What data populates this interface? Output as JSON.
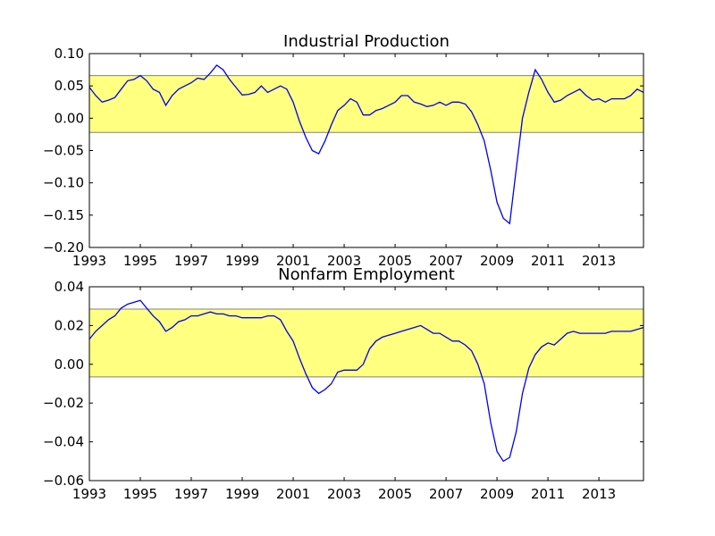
{
  "colors": {
    "line": "#0000ee",
    "band_fill": "#ffff80",
    "band_edge": "#808080"
  },
  "chart_data": [
    {
      "type": "line",
      "title": "Industrial Production",
      "xlabel": "",
      "ylabel": "",
      "xlim": [
        1993.0,
        2014.75
      ],
      "ylim": [
        -0.2,
        0.1
      ],
      "xticks": [
        1993,
        1995,
        1997,
        1999,
        2001,
        2003,
        2005,
        2007,
        2009,
        2011,
        2013
      ],
      "xtick_labels": [
        "1993",
        "1995",
        "1997",
        "1999",
        "2001",
        "2003",
        "2005",
        "2007",
        "2009",
        "2011",
        "2013"
      ],
      "yticks": [
        -0.2,
        -0.15,
        -0.1,
        -0.05,
        0.0,
        0.05,
        0.1
      ],
      "ytick_labels": [
        "−0.20",
        "−0.15",
        "−0.10",
        "−0.05",
        "0.00",
        "0.05",
        "0.10"
      ],
      "band": [
        -0.022,
        0.066
      ],
      "grid": false,
      "series": [
        {
          "x": [
            1993.0,
            1993.25,
            1993.5,
            1993.75,
            1994.0,
            1994.25,
            1994.5,
            1994.75,
            1995.0,
            1995.25,
            1995.5,
            1995.75,
            1996.0,
            1996.25,
            1996.5,
            1996.75,
            1997.0,
            1997.25,
            1997.5,
            1997.75,
            1998.0,
            1998.25,
            1998.5,
            1998.75,
            1999.0,
            1999.25,
            1999.5,
            1999.75,
            2000.0,
            2000.25,
            2000.5,
            2000.75,
            2001.0,
            2001.25,
            2001.5,
            2001.75,
            2002.0,
            2002.25,
            2002.5,
            2002.75,
            2003.0,
            2003.25,
            2003.5,
            2003.75,
            2004.0,
            2004.25,
            2004.5,
            2004.75,
            2005.0,
            2005.25,
            2005.5,
            2005.75,
            2006.0,
            2006.25,
            2006.5,
            2006.75,
            2007.0,
            2007.25,
            2007.5,
            2007.75,
            2008.0,
            2008.25,
            2008.5,
            2008.75,
            2009.0,
            2009.25,
            2009.5,
            2009.75,
            2010.0,
            2010.25,
            2010.5,
            2010.75,
            2011.0,
            2011.25,
            2011.5,
            2011.75,
            2012.0,
            2012.25,
            2012.5,
            2012.75,
            2013.0,
            2013.25,
            2013.5,
            2013.75,
            2014.0,
            2014.25,
            2014.5,
            2014.75
          ],
          "y": [
            0.048,
            0.035,
            0.025,
            0.028,
            0.032,
            0.045,
            0.058,
            0.06,
            0.066,
            0.058,
            0.045,
            0.04,
            0.02,
            0.035,
            0.045,
            0.05,
            0.055,
            0.062,
            0.06,
            0.07,
            0.082,
            0.075,
            0.06,
            0.048,
            0.036,
            0.037,
            0.04,
            0.05,
            0.04,
            0.045,
            0.05,
            0.045,
            0.025,
            -0.005,
            -0.03,
            -0.05,
            -0.055,
            -0.035,
            -0.01,
            0.012,
            0.02,
            0.03,
            0.025,
            0.005,
            0.005,
            0.012,
            0.015,
            0.02,
            0.025,
            0.035,
            0.035,
            0.025,
            0.022,
            0.018,
            0.02,
            0.025,
            0.02,
            0.025,
            0.025,
            0.022,
            0.01,
            -0.01,
            -0.035,
            -0.08,
            -0.13,
            -0.155,
            -0.163,
            -0.08,
            0.0,
            0.04,
            0.075,
            0.06,
            0.04,
            0.025,
            0.028,
            0.035,
            0.04,
            0.045,
            0.035,
            0.028,
            0.03,
            0.025,
            0.03,
            0.03,
            0.03,
            0.035,
            0.045,
            0.04
          ]
        }
      ]
    },
    {
      "type": "line",
      "title": "Nonfarm Employment",
      "xlabel": "",
      "ylabel": "",
      "xlim": [
        1993.0,
        2014.75
      ],
      "ylim": [
        -0.06,
        0.04
      ],
      "xticks": [
        1993,
        1995,
        1997,
        1999,
        2001,
        2003,
        2005,
        2007,
        2009,
        2011,
        2013
      ],
      "xtick_labels": [
        "1993",
        "1995",
        "1997",
        "1999",
        "2001",
        "2003",
        "2005",
        "2007",
        "2009",
        "2011",
        "2013"
      ],
      "yticks": [
        -0.06,
        -0.04,
        -0.02,
        0.0,
        0.02,
        0.04
      ],
      "ytick_labels": [
        "−0.06",
        "−0.04",
        "−0.02",
        "0.00",
        "0.02",
        "0.04"
      ],
      "band": [
        -0.0065,
        0.0285
      ],
      "grid": false,
      "series": [
        {
          "x": [
            1993.0,
            1993.25,
            1993.5,
            1993.75,
            1994.0,
            1994.25,
            1994.5,
            1994.75,
            1995.0,
            1995.25,
            1995.5,
            1995.75,
            1996.0,
            1996.25,
            1996.5,
            1996.75,
            1997.0,
            1997.25,
            1997.5,
            1997.75,
            1998.0,
            1998.25,
            1998.5,
            1998.75,
            1999.0,
            1999.25,
            1999.5,
            1999.75,
            2000.0,
            2000.25,
            2000.5,
            2000.75,
            2001.0,
            2001.25,
            2001.5,
            2001.75,
            2002.0,
            2002.25,
            2002.5,
            2002.75,
            2003.0,
            2003.25,
            2003.5,
            2003.75,
            2004.0,
            2004.25,
            2004.5,
            2004.75,
            2005.0,
            2005.25,
            2005.5,
            2005.75,
            2006.0,
            2006.25,
            2006.5,
            2006.75,
            2007.0,
            2007.25,
            2007.5,
            2007.75,
            2008.0,
            2008.25,
            2008.5,
            2008.75,
            2009.0,
            2009.25,
            2009.5,
            2009.75,
            2010.0,
            2010.25,
            2010.5,
            2010.75,
            2011.0,
            2011.25,
            2011.5,
            2011.75,
            2012.0,
            2012.25,
            2012.5,
            2012.75,
            2013.0,
            2013.25,
            2013.5,
            2013.75,
            2014.0,
            2014.25,
            2014.5,
            2014.75
          ],
          "y": [
            0.013,
            0.017,
            0.02,
            0.023,
            0.025,
            0.029,
            0.031,
            0.032,
            0.033,
            0.029,
            0.025,
            0.022,
            0.017,
            0.019,
            0.022,
            0.023,
            0.025,
            0.025,
            0.026,
            0.027,
            0.026,
            0.026,
            0.025,
            0.025,
            0.024,
            0.024,
            0.024,
            0.024,
            0.025,
            0.025,
            0.023,
            0.017,
            0.012,
            0.003,
            -0.005,
            -0.012,
            -0.015,
            -0.013,
            -0.01,
            -0.004,
            -0.003,
            -0.003,
            -0.003,
            0.0,
            0.008,
            0.012,
            0.014,
            0.015,
            0.016,
            0.017,
            0.018,
            0.019,
            0.02,
            0.018,
            0.016,
            0.016,
            0.014,
            0.012,
            0.012,
            0.01,
            0.007,
            0.0,
            -0.01,
            -0.03,
            -0.045,
            -0.05,
            -0.048,
            -0.035,
            -0.015,
            -0.002,
            0.005,
            0.009,
            0.011,
            0.01,
            0.013,
            0.016,
            0.017,
            0.016,
            0.016,
            0.016,
            0.016,
            0.016,
            0.017,
            0.017,
            0.017,
            0.017,
            0.018,
            0.019
          ]
        }
      ]
    }
  ]
}
